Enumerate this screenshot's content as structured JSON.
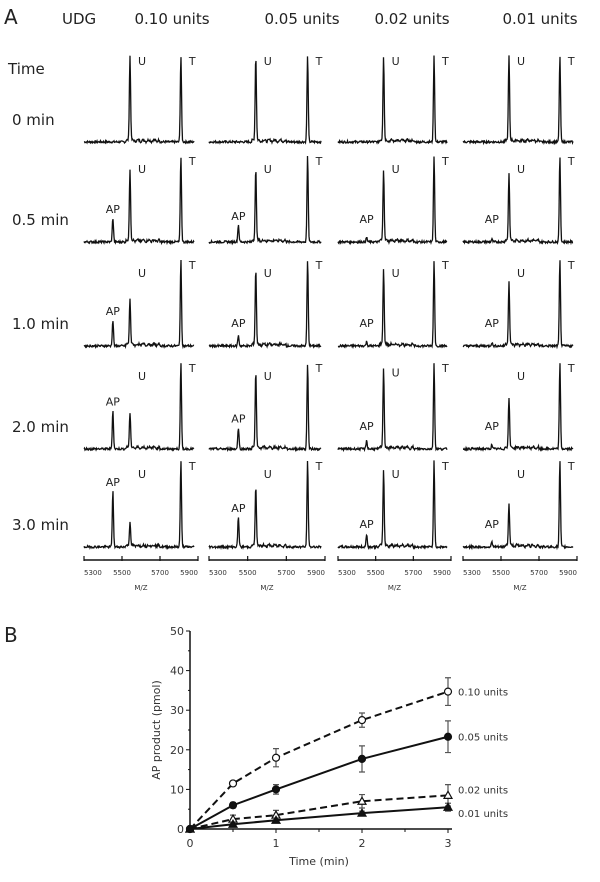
{
  "panel_a": {
    "label": "A",
    "enzyme_label": "UDG",
    "time_header": "Time",
    "columns": [
      "0.10 units",
      "0.05 units",
      "0.02 units",
      "0.01 units"
    ],
    "rows": [
      "0 min",
      "0.5 min",
      "1.0 min",
      "2.0 min",
      "3.0 min"
    ],
    "peak_labels": {
      "ap": "AP",
      "u": "U",
      "t": "T"
    },
    "peak_mz": {
      "ap": 5452,
      "u": 5542,
      "t": 5810
    },
    "x_ticks": [
      "5300",
      "5500",
      "5700",
      "5900"
    ],
    "x_range": [
      5300,
      5900
    ],
    "xlabel": "M/Z",
    "relative_intensities": [
      [
        [
          0,
          1,
          1
        ],
        [
          0,
          1,
          1
        ],
        [
          0,
          1,
          1
        ],
        [
          0,
          1,
          1
        ]
      ],
      [
        [
          0.28,
          0.85,
          1
        ],
        [
          0.2,
          0.85,
          1
        ],
        [
          0.05,
          0.85,
          1
        ],
        [
          0.03,
          0.8,
          1
        ]
      ],
      [
        [
          0.3,
          0.55,
          1
        ],
        [
          0.12,
          0.9,
          1
        ],
        [
          0.05,
          0.9,
          1
        ],
        [
          0.04,
          0.75,
          1
        ]
      ],
      [
        [
          0.45,
          0.42,
          1
        ],
        [
          0.25,
          0.9,
          1
        ],
        [
          0.1,
          0.95,
          1
        ],
        [
          0.05,
          0.6,
          1
        ]
      ],
      [
        [
          0.65,
          0.28,
          1
        ],
        [
          0.35,
          0.7,
          1
        ],
        [
          0.15,
          0.9,
          1
        ],
        [
          0.06,
          0.5,
          1
        ]
      ]
    ]
  },
  "chart_data": {
    "type": "line",
    "panel_label": "B",
    "xlabel": "Time (min)",
    "ylabel": "AP product (pmol)",
    "x": [
      0,
      0.5,
      1,
      2,
      3
    ],
    "xlim": [
      0,
      3
    ],
    "ylim": [
      0,
      50
    ],
    "x_ticks": [
      "0",
      "1",
      "2",
      "3"
    ],
    "y_ticks": [
      "0",
      "10",
      "20",
      "30",
      "40",
      "50"
    ],
    "series": [
      {
        "name": "0.10 units",
        "values": [
          0,
          11.5,
          18,
          27.5,
          34.7
        ],
        "errors": [
          0.3,
          0.5,
          2.3,
          1.8,
          3.5
        ],
        "marker": "open-circle",
        "dash": true
      },
      {
        "name": "0.05 units",
        "values": [
          0,
          6,
          10,
          17.7,
          23.3
        ],
        "errors": [
          0.3,
          0.7,
          1.2,
          3.3,
          4
        ],
        "marker": "filled-circle",
        "dash": false
      },
      {
        "name": "0.02 units",
        "values": [
          0,
          2.5,
          3.5,
          7,
          8.5
        ],
        "errors": [
          0.3,
          1,
          1.2,
          1.7,
          2.7
        ],
        "marker": "open-triangle",
        "dash": true
      },
      {
        "name": "0.01 units",
        "values": [
          0,
          1.2,
          2.2,
          4,
          5.5
        ],
        "errors": [
          0.3,
          0.4,
          0.5,
          0.5,
          1
        ],
        "marker": "filled-triangle",
        "dash": false
      }
    ]
  }
}
